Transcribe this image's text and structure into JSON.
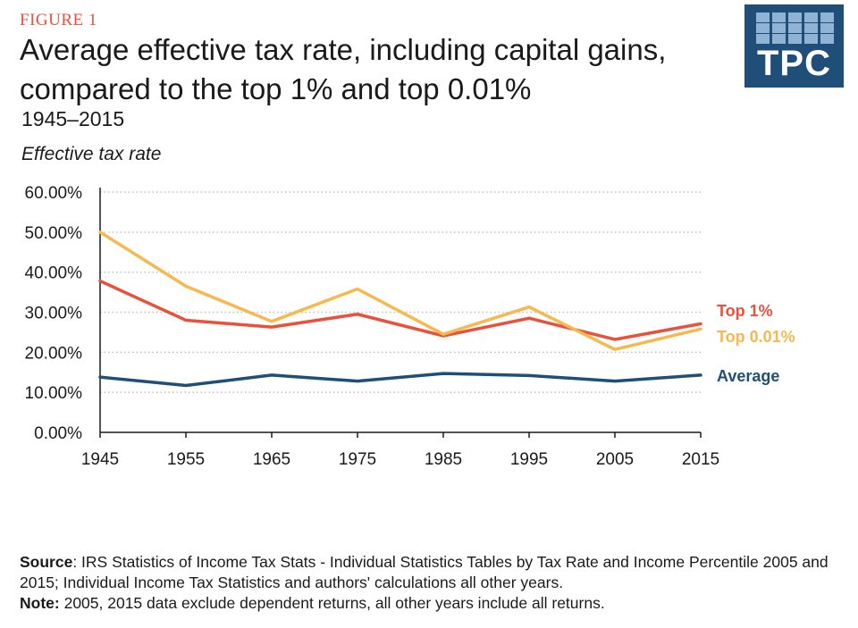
{
  "figure_label": "FIGURE 1",
  "title": "Average effective tax rate, including capital gains, compared to the top 1% and top 0.01%",
  "subtitle": "1945–2015",
  "logo_text": "TPC",
  "colors": {
    "top1": "#e8513c",
    "top001": "#f7b84d",
    "average": "#1f4e79",
    "grid": "#bfbfbf",
    "logo_bg": "#1f4e79"
  },
  "chart_data": {
    "type": "line",
    "title": "Average effective tax rate, including capital gains, compared to the top 1% and top 0.01%",
    "ylabel": "Effective tax rate",
    "xlabel": "",
    "x": [
      1945,
      1955,
      1965,
      1975,
      1985,
      1995,
      2005,
      2015
    ],
    "ylim": [
      0,
      60
    ],
    "y_ticks": [
      "0.00%",
      "10.00%",
      "20.00%",
      "30.00%",
      "40.00%",
      "50.00%",
      "60.00%"
    ],
    "x_ticks": [
      "1945",
      "1955",
      "1965",
      "1975",
      "1985",
      "1995",
      "2005",
      "2015"
    ],
    "grid": "horizontal dotted",
    "legend": "right, labels at line ends",
    "series": [
      {
        "name": "Top 1%",
        "color": "#e8513c",
        "values": [
          37.8,
          28.0,
          26.3,
          29.5,
          24.1,
          28.5,
          23.2,
          27.1
        ]
      },
      {
        "name": "Top 0.01%",
        "color": "#f7b84d",
        "values": [
          50.0,
          36.5,
          27.7,
          35.8,
          24.5,
          31.3,
          20.7,
          25.8
        ]
      },
      {
        "name": "Average",
        "color": "#1f4e79",
        "values": [
          13.8,
          11.7,
          14.3,
          12.8,
          14.7,
          14.2,
          12.8,
          14.3
        ]
      }
    ]
  },
  "notes": {
    "source_label": "Source",
    "source_text": ": IRS Statistics of Income Tax Stats - Individual Statistics Tables by Tax Rate and Income Percentile 2005 and 2015; Individual Income Tax Statistics and authors' calculations all other years.",
    "note_label": "Note:",
    "note_text": " 2005, 2015 data exclude dependent returns, all other years include all returns."
  }
}
